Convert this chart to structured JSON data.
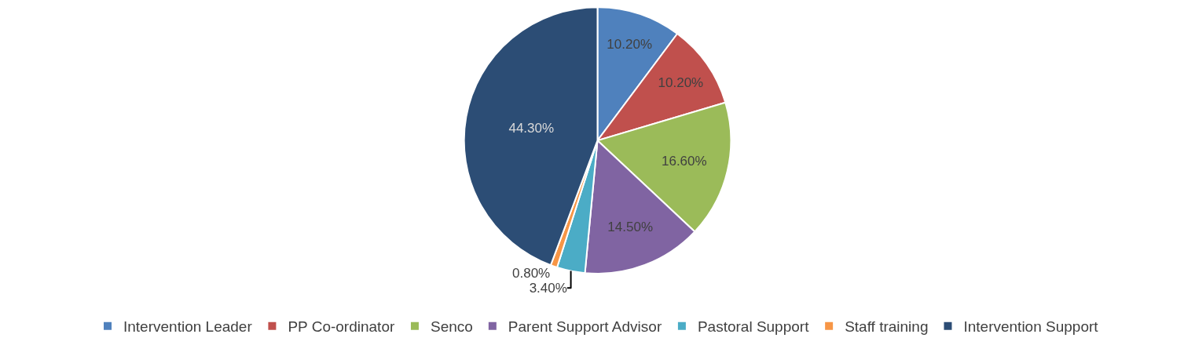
{
  "chart_data": {
    "type": "pie",
    "categories": [
      "Intervention Leader",
      "PP Co-ordinator",
      "Senco",
      "Parent Support Advisor",
      "Pastoral Support",
      "Staff training",
      "Intervention Support"
    ],
    "values": [
      10.2,
      10.2,
      16.6,
      14.5,
      3.4,
      0.8,
      44.3
    ],
    "colors": [
      "#4f81bd",
      "#c0504d",
      "#9bbb59",
      "#8064a2",
      "#4bacc6",
      "#f79646",
      "#2c4d75"
    ],
    "value_labels": [
      "10.20%",
      "10.20%",
      "16.60%",
      "14.50%",
      "3.40%",
      "0.80%",
      "44.30%"
    ],
    "legend": "bottom"
  }
}
